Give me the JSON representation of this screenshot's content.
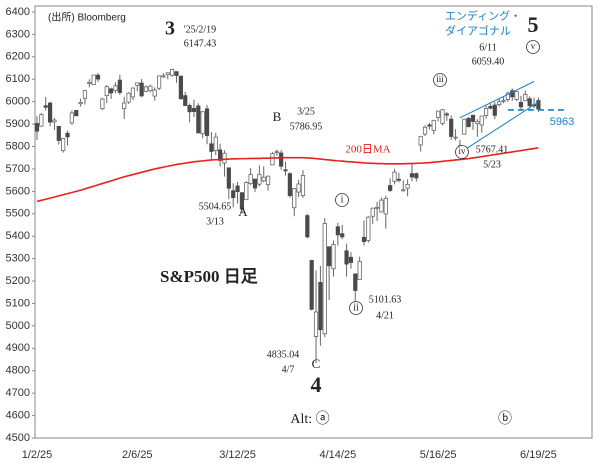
{
  "chart_data": {
    "type": "candlestick",
    "title": "S&P500 日足",
    "categories": [
      "1/2/25",
      null,
      null,
      null,
      null,
      null,
      null,
      null,
      null,
      null,
      null,
      null,
      null,
      null,
      null,
      null,
      null,
      null,
      null,
      null,
      null,
      null,
      null,
      "2/6/25",
      null,
      null,
      null,
      null,
      null,
      null,
      null,
      null,
      null,
      null,
      null,
      null,
      null,
      null,
      null,
      null,
      null,
      null,
      null,
      null,
      null,
      null,
      "3/12/25",
      null,
      null,
      null,
      null,
      null,
      null,
      null,
      null,
      null,
      null,
      null,
      null,
      null,
      null,
      null,
      null,
      null,
      null,
      null,
      null,
      null,
      null,
      "4/14/25",
      null,
      null,
      null,
      null,
      null,
      null,
      null,
      null,
      null,
      null,
      null,
      null,
      null,
      null,
      null,
      null,
      null,
      null,
      null,
      null,
      null,
      null,
      "5/16/25",
      null,
      null,
      null,
      null,
      null,
      null,
      null,
      null,
      null,
      null,
      null,
      null,
      null,
      null,
      null,
      null,
      null,
      null,
      null,
      null,
      null,
      null,
      "6/19/25"
    ],
    "series": [
      {
        "name": "S&P500",
        "up_color": "#ffffff",
        "down_color": "#4a4a4a",
        "edge_color": "#666666",
        "open": [
          5903,
          5891,
          5982,
          5994,
          5910,
          5890,
          5782,
          5859,
          5905,
          5961,
          5991,
          6015,
          6081,
          6076,
          6118,
          5969,
          6027,
          6057,
          6050,
          6096,
          5969,
          5998,
          6021,
          6073,
          6083,
          6046,
          6049,
          6025,
          6060,
          6115,
          6121,
          6118,
          6134,
          6114,
          6027,
          5983,
          5970,
          5981,
          5857,
          5968,
          5812,
          5782,
          5785,
          5726,
          5705,
          5603,
          5624,
          5594,
          5563,
          5635,
          5655,
          5632,
          5647,
          5630,
          5718,
          5776,
          5771,
          5696,
          5679,
          5527,
          5597,
          5581,
          5492,
          5292,
          4953,
          5194,
          4965,
          5353,
          5255,
          5442,
          5411,
          5335,
          5306,
          5232,
          5207,
          5395,
          5381,
          5489,
          5529,
          5508,
          5499,
          5626,
          5645,
          5654,
          5605,
          5614,
          5679,
          5679,
          5807,
          5855,
          5896,
          5872,
          5930,
          5903,
          5945,
          5922,
          5841,
          5781,
          5855,
          5926,
          5939,
          5903,
          5896,
          5939,
          5979,
          5985,
          5987,
          6004,
          6010,
          6049,
          6010,
          5997,
          6004,
          6013,
          5986,
          6005
        ],
        "high": [
          5935,
          5949,
          6021,
          6000,
          5927,
          5890,
          5838,
          5871,
          5960,
          5964,
          6014,
          6052,
          6100,
          6119,
          6128,
          6017,
          6074,
          6063,
          6087,
          6120,
          6022,
          6042,
          6063,
          6084,
          6101,
          6073,
          6076,
          6064,
          6116,
          6128,
          6129,
          6147,
          6134,
          6115,
          6044,
          5992,
          6009,
          5993,
          5959,
          5986,
          5865,
          5861,
          5812,
          5783,
          5705,
          5636,
          5642,
          5597,
          5645,
          5704,
          5655,
          5716,
          5712,
          5670,
          5775,
          5787,
          5784,
          5732,
          5685,
          5615,
          5651,
          5695,
          5500,
          5293,
          5247,
          5268,
          5481,
          5353,
          5381,
          5460,
          5450,
          5367,
          5329,
          5232,
          5309,
          5470,
          5489,
          5528,
          5553,
          5572,
          5581,
          5658,
          5700,
          5683,
          5649,
          5654,
          5721,
          5684,
          5846,
          5895,
          5906,
          5917,
          5958,
          5968,
          5954,
          5939,
          5878,
          5829,
          5924,
          5931,
          5943,
          5922,
          5937,
          5981,
          5991,
          5999,
          6017,
          6022,
          6044,
          6059,
          6046,
          6026,
          6050,
          6024,
          6018,
          6018
        ],
        "low": [
          5829,
          5888,
          5960,
          5890,
          5874,
          5809,
          5773,
          5805,
          5897,
          5936,
          5978,
          5987,
          6064,
          6075,
          6088,
          5962,
          5994,
          6012,
          6037,
          6030,
          5923,
          5990,
          6007,
          6046,
          6020,
          6044,
          6042,
          6004,
          6051,
          6107,
          6100,
          6111,
          6084,
          6009,
          5980,
          5908,
          5932,
          5858,
          5837,
          5810,
          5744,
          5762,
          5711,
          5666,
          5565,
          5529,
          5546,
          5505,
          5563,
          5628,
          5598,
          5622,
          5640,
          5603,
          5718,
          5760,
          5696,
          5670,
          5572,
          5489,
          5574,
          5571,
          5391,
          5069,
          4835,
          4911,
          4950,
          5115,
          5220,
          5358,
          5386,
          5220,
          5255,
          5102,
          5207,
          5359,
          5371,
          5455,
          5468,
          5506,
          5434,
          5598,
          5631,
          5640,
          5599,
          5578,
          5645,
          5644,
          5777,
          5846,
          5876,
          5854,
          5911,
          5895,
          5915,
          5830,
          5827,
          5767,
          5855,
          5885,
          5874,
          5843,
          5862,
          5924,
          5966,
          5922,
          5978,
          5993,
          5999,
          6003,
          6004,
          5964,
          6004,
          5969,
          5971,
          5953
        ],
        "close": [
          5869,
          5942,
          5975,
          5909,
          5918,
          5827,
          5836,
          5843,
          5950,
          5937,
          5997,
          6049,
          6086,
          6119,
          6101,
          6012,
          6067,
          6039,
          6071,
          6041,
          5994,
          6038,
          6061,
          6084,
          6026,
          6066,
          6069,
          6052,
          6115,
          6115,
          6129,
          6144,
          6117,
          6013,
          5983,
          5955,
          5956,
          5861,
          5955,
          5849,
          5778,
          5842,
          5738,
          5770,
          5614,
          5572,
          5599,
          5521,
          5639,
          5675,
          5615,
          5676,
          5663,
          5668,
          5768,
          5777,
          5712,
          5693,
          5581,
          5612,
          5633,
          5671,
          5397,
          5074,
          5062,
          4983,
          5457,
          5268,
          5363,
          5406,
          5397,
          5276,
          5283,
          5158,
          5288,
          5376,
          5485,
          5525,
          5529,
          5561,
          5569,
          5604,
          5686,
          5650,
          5607,
          5631,
          5664,
          5660,
          5844,
          5886,
          5893,
          5917,
          5958,
          5964,
          5941,
          5845,
          5842,
          5803,
          5922,
          5889,
          5912,
          5912,
          5936,
          5970,
          5971,
          5939,
          6000,
          6006,
          6039,
          6022,
          6045,
          5977,
          6033,
          5982,
          5981,
          5967
        ]
      },
      {
        "name": "200日MA",
        "color": "#e8211a",
        "values": [
          5555,
          5560,
          5565,
          5570,
          5575,
          5580,
          5585,
          5590,
          5595,
          5600,
          5605,
          5611,
          5617,
          5623,
          5629,
          5635,
          5641,
          5647,
          5653,
          5659,
          5665,
          5670,
          5675,
          5680,
          5685,
          5690,
          5695,
          5700,
          5704,
          5708,
          5712,
          5716,
          5720,
          5723,
          5726,
          5729,
          5732,
          5734,
          5736,
          5738,
          5740,
          5741,
          5742,
          5743,
          5744,
          5745,
          5745,
          5746,
          5746,
          5747,
          5747,
          5747,
          5748,
          5748,
          5749,
          5749,
          5750,
          5750,
          5750,
          5750,
          5750,
          5750,
          5749,
          5748,
          5746,
          5744,
          5742,
          5740,
          5738,
          5736,
          5735,
          5733,
          5732,
          5730,
          5729,
          5727,
          5726,
          5725,
          5724,
          5724,
          5723,
          5723,
          5723,
          5723,
          5723,
          5724,
          5724,
          5725,
          5726,
          5727,
          5728,
          5730,
          5732,
          5734,
          5736,
          5738,
          5740,
          5742,
          5744,
          5746,
          5749,
          5752,
          5755,
          5758,
          5761,
          5764,
          5767,
          5770,
          5773,
          5776,
          5779,
          5782,
          5785,
          5788,
          5791,
          5794
        ]
      }
    ],
    "ylim": [
      4500,
      6400
    ],
    "yticks": [
      4500,
      4600,
      4700,
      4800,
      4900,
      5000,
      5100,
      5200,
      5300,
      5400,
      5500,
      5600,
      5700,
      5800,
      5900,
      6000,
      6100,
      6200,
      6300,
      6400
    ],
    "channel_lines": [
      {
        "x": [
          97,
          114
        ],
        "y": [
          5928,
          6090
        ]
      },
      {
        "x": [
          97,
          115
        ],
        "y": [
          5772,
          5998
        ]
      }
    ],
    "level_line": {
      "value": 5963,
      "x": [
        108,
        121
      ],
      "color": "#1a7fc1"
    },
    "annotations": [
      "(出所) Bloomberg",
      "3",
      "'25/2/19",
      "6147.43",
      "B",
      "3/25",
      "5786.95",
      "200日MA",
      "5504.65",
      "3/13",
      "A",
      "i",
      "ii",
      "5101.63",
      "4/21",
      "4835.04",
      "4/7",
      "C",
      "4",
      "iii",
      "iv",
      "5767.41",
      "5/23",
      "v",
      "6/11",
      "6059.40",
      "エンディング・",
      "ダイアゴナル",
      "5",
      "Alt: ⓐ",
      "ⓑ"
    ]
  }
}
